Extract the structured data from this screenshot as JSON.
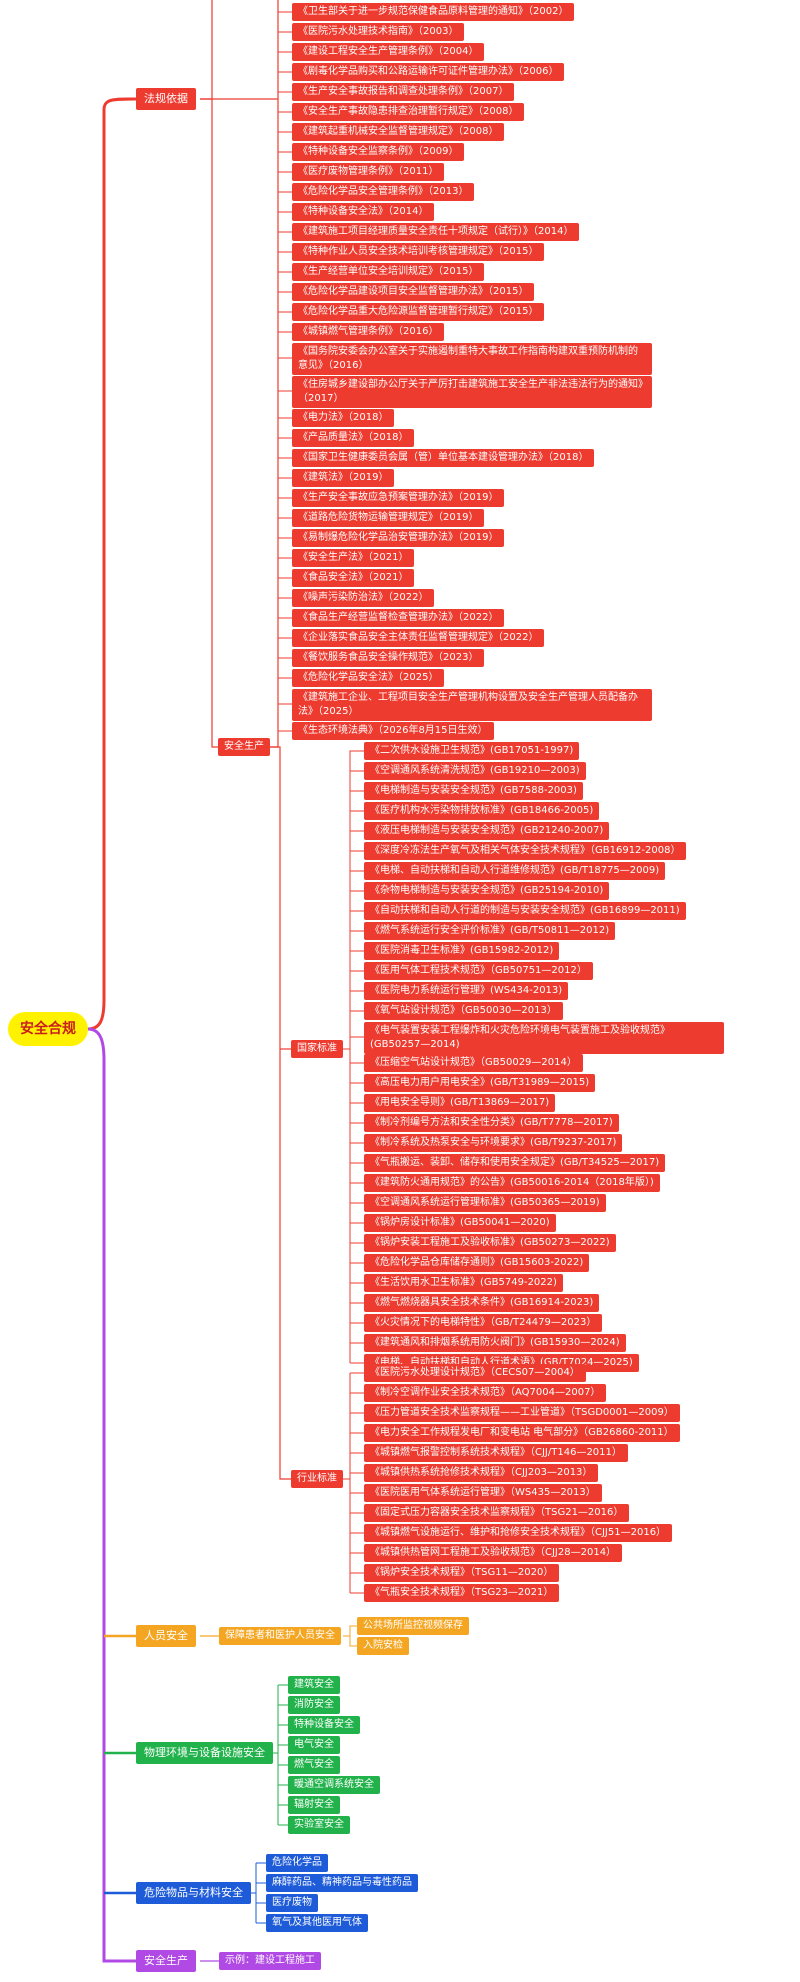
{
  "root": "安全合规",
  "colors": {
    "red": "#ee3b30",
    "orange": "#f4a623",
    "green": "#22b24c",
    "blue": "#1e5bd8",
    "purple": "#b14ae4",
    "root": "#fff200"
  },
  "branches": {
    "law": "法规依据",
    "safety_prod": "安全生产",
    "national": "国家标准",
    "industry": "行业标准",
    "personnel": "人员安全",
    "personnel_sub": "保障患者和医护人员安全",
    "physical": "物理环境与设备设施安全",
    "hazard": "危险物品与材料安全",
    "prod2": "安全生产",
    "prod2_sub": "示例：建设工程施工"
  },
  "laws": [
    "《卫生部关于进一步规范保健食品原料管理的通知》（2002）",
    "《医院污水处理技术指南》（2003）",
    "《建设工程安全生产管理条例》（2004）",
    "《剧毒化学品购买和公路运输许可证件管理办法》（2006）",
    "《生产安全事故报告和调查处理条例》（2007）",
    "《安全生产事故隐患排查治理暂行规定》（2008）",
    "《建筑起重机械安全监督管理规定》（2008）",
    "《特种设备安全监察条例》（2009）",
    "《医疗废物管理条例》（2011）",
    "《危险化学品安全管理条例》（2013）",
    "《特种设备安全法》（2014）",
    "《建筑施工项目经理质量安全责任十项规定（试行）》（2014）",
    "《特种作业人员安全技术培训考核管理规定》（2015）",
    "《生产经营单位安全培训规定》（2015）",
    "《危险化学品建设项目安全监督管理办法》（2015）",
    "《危险化学品重大危险源监督管理暂行规定》（2015）",
    "《城镇燃气管理条例》（2016）",
    "《国务院安委会办公室关于实施遏制重特大事故工作指南构建双重预防机制的意见》（2016）",
    "《住房城乡建设部办公厅关于严厉打击建筑施工安全生产非法违法行为的通知》（2017）",
    "《电力法》（2018）",
    "《产品质量法》（2018）",
    "《国家卫生健康委员会属（管）单位基本建设管理办法》（2018）",
    "《建筑法》（2019）",
    "《生产安全事故应急预案管理办法》（2019）",
    "《道路危险货物运输管理规定》（2019）",
    "《易制爆危险化学品治安管理办法》（2019）",
    "《安全生产法》（2021）",
    "《食品安全法》（2021）",
    "《噪声污染防治法》（2022）",
    "《食品生产经营监督检查管理办法》（2022）",
    "《企业落实食品安全主体责任监督管理规定》（2022）",
    "《餐饮服务食品安全操作规范》（2023）",
    "《危险化学品安全法》（2025）",
    "《建筑施工企业、工程项目安全生产管理机构设置及安全生产管理人员配备办法》（2025）",
    "《生态环境法典》（2026年8月15日生效）"
  ],
  "national_standards": [
    "《二次供水设施卫生规范》(GB17051-1997)",
    "《空调通风系统清洗规范》(GB19210—2003)",
    "《电梯制造与安装安全规范》(GB7588-2003)",
    "《医疗机构水污染物排放标准》(GB18466-2005)",
    "《液压电梯制造与安装安全规范》(GB21240-2007)",
    "《深度冷冻法生产氧气及相关气体安全技术规程》（GB16912-2008）",
    "《电梯、自动扶梯和自动人行道维修规范》(GB/T18775—2009)",
    "《杂物电梯制造与安装安全规范》(GB25194-2010)",
    "《自动扶梯和自动人行道的制造与安装安全规范》(GB16899—2011)",
    "《燃气系统运行安全评价标准》(GB/T50811—2012)",
    "《医院消毒卫生标准》(GB15982-2012)",
    "《医用气体工程技术规范》（GB50751—2012）",
    "《医院电力系统运行管理》(WS434-2013)",
    "《氧气站设计规范》（GB50030—2013）",
    "《电气装置安装工程爆炸和火灾危险环境电气装置施工及验收规范》(GB50257—2014)",
    "《压缩空气站设计规范》（GB50029—2014）",
    "《高压电力用户用电安全》(GB/T31989—2015)",
    "《用电安全导则》(GB/T13869—2017)",
    "《制冷剂编号方法和安全性分类》(GB/T7778—2017)",
    "《制冷系统及热泵安全与环境要求》(GB/T9237-2017)",
    "《气瓶搬运、装卸、储存和使用安全规定》(GB/T34525—2017)",
    "《建筑防火通用规范》的公告》(GB50016-2014（2018年版）)",
    "《空调通风系统运行管理标准》(GB50365—2019)",
    "《锅炉房设计标准》(GB50041—2020)",
    "《锅炉安装工程施工及验收标准》(GB50273—2022)",
    "《危险化学品仓库储存通则》(GB15603-2022)",
    "《生活饮用水卫生标准》(GB5749-2022)",
    "《燃气燃烧器具安全技术条件》(GB16914-2023)",
    "《火灾情况下的电梯特性》（GB/T24479—2023）",
    "《建筑通风和排烟系统用防火阀门》(GB15930—2024)",
    "《电梯、自动扶梯和自动人行道术语》(GB/T7024—2025)"
  ],
  "industry_standards": [
    "《医院污水处理设计规范》（CECS07—2004）",
    "《制冷空调作业安全技术规范》（AQ7004—2007）",
    "《压力管道安全技术监察规程——工业管道》（TSGD0001—2009）",
    "《电力安全工作规程发电厂和变电站 电气部分》（GB26860-2011）",
    "《城镇燃气报警控制系统技术规程》（CJJ/T146—2011）",
    "《城镇供热系统抢修技术规程》（CJJ203—2013）",
    "《医院医用气体系统运行管理》（WS435—2013）",
    "《固定式压力容器安全技术监察规程》（TSG21—2016）",
    "《城镇燃气设施运行、维护和抢修安全技术规程》（CJJ51—2016）",
    "《城镇供热管网工程施工及验收规范》（CJJ28—2014）",
    "《锅炉安全技术规程》（TSG11—2020）",
    "《气瓶安全技术规程》（TSG23—2021）"
  ],
  "personnel_items": [
    "公共场所监控视频保存",
    "入院安检"
  ],
  "physical_items": [
    "建筑安全",
    "消防安全",
    "特种设备安全",
    "电气安全",
    "燃气安全",
    "暖通空调系统安全",
    "辐射安全",
    "实验室安全"
  ],
  "hazard_items": [
    "危险化学品",
    "麻醉药品、精神药品与毒性药品",
    "医疗废物",
    "氧气及其他医用气体"
  ]
}
